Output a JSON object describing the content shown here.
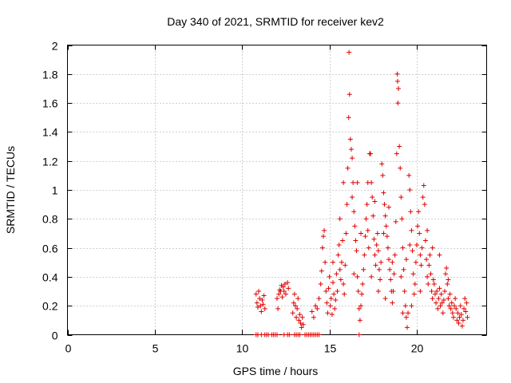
{
  "chart_data": {
    "type": "scatter",
    "title": "Day 340 of 2021, SRMTID for receiver kev2",
    "xlabel": "GPS time / hours",
    "ylabel": "SRMTID / TECUs",
    "xlim": [
      0,
      24
    ],
    "ylim": [
      0,
      2
    ],
    "xticks": [
      0,
      5,
      10,
      15,
      20
    ],
    "xtick_labels": [
      "0",
      "5",
      "10",
      "15",
      "20"
    ],
    "yticks": [
      0,
      0.2,
      0.4,
      0.6,
      0.8,
      1,
      1.2,
      1.4,
      1.6,
      1.8,
      2
    ],
    "ytick_labels": [
      "0",
      "0.2",
      "0.4",
      "0.6",
      "0.8",
      "1",
      "1.2",
      "1.4",
      "1.6",
      "1.8",
      "2"
    ],
    "grid": true,
    "marker": "+",
    "marker_color": "#e00000",
    "series": [
      {
        "name": "kev2",
        "points": [
          [
            10.8,
            0.0
          ],
          [
            10.9,
            0.0
          ],
          [
            11.1,
            0.0
          ],
          [
            11.3,
            0.0
          ],
          [
            11.4,
            0.0
          ],
          [
            11.5,
            0.0
          ],
          [
            11.7,
            0.0
          ],
          [
            11.8,
            0.0
          ],
          [
            11.9,
            0.0
          ],
          [
            12.0,
            0.0
          ],
          [
            12.4,
            0.0
          ],
          [
            12.6,
            0.0
          ],
          [
            12.7,
            0.0
          ],
          [
            13.0,
            0.0
          ],
          [
            13.1,
            0.0
          ],
          [
            13.2,
            0.0
          ],
          [
            13.3,
            0.0
          ],
          [
            13.6,
            0.0
          ],
          [
            13.7,
            0.0
          ],
          [
            13.8,
            0.0
          ],
          [
            13.9,
            0.0
          ],
          [
            14.0,
            0.0
          ],
          [
            14.1,
            0.0
          ],
          [
            14.2,
            0.0
          ],
          [
            14.3,
            0.0
          ],
          [
            14.4,
            0.0
          ],
          [
            16.7,
            0.0
          ],
          [
            10.8,
            0.28
          ],
          [
            10.85,
            0.22
          ],
          [
            10.9,
            0.19
          ],
          [
            10.95,
            0.3
          ],
          [
            11.0,
            0.25
          ],
          [
            11.05,
            0.2
          ],
          [
            11.1,
            0.16
          ],
          [
            11.15,
            0.24
          ],
          [
            11.2,
            0.21
          ],
          [
            11.25,
            0.27
          ],
          [
            11.3,
            0.18
          ],
          [
            12.0,
            0.25
          ],
          [
            12.05,
            0.18
          ],
          [
            12.1,
            0.28
          ],
          [
            12.15,
            0.31
          ],
          [
            12.2,
            0.3
          ],
          [
            12.25,
            0.34
          ],
          [
            12.3,
            0.26
          ],
          [
            12.35,
            0.33
          ],
          [
            12.4,
            0.3
          ],
          [
            12.45,
            0.35
          ],
          [
            12.5,
            0.28
          ],
          [
            12.6,
            0.36
          ],
          [
            12.65,
            0.32
          ],
          [
            12.9,
            0.15
          ],
          [
            12.95,
            0.22
          ],
          [
            13.0,
            0.28
          ],
          [
            13.05,
            0.2
          ],
          [
            13.1,
            0.12
          ],
          [
            13.15,
            0.18
          ],
          [
            13.2,
            0.25
          ],
          [
            13.25,
            0.1
          ],
          [
            13.3,
            0.14
          ],
          [
            13.35,
            0.08
          ],
          [
            13.4,
            0.05
          ],
          [
            13.45,
            0.12
          ],
          [
            13.5,
            0.07
          ],
          [
            14.0,
            0.16
          ],
          [
            14.1,
            0.12
          ],
          [
            14.2,
            0.2
          ],
          [
            14.3,
            0.18
          ],
          [
            14.4,
            0.25
          ],
          [
            14.5,
            0.35
          ],
          [
            14.55,
            0.44
          ],
          [
            14.6,
            0.6
          ],
          [
            14.65,
            0.68
          ],
          [
            14.7,
            0.72
          ],
          [
            14.75,
            0.5
          ],
          [
            14.8,
            0.3
          ],
          [
            14.85,
            0.22
          ],
          [
            14.9,
            0.15
          ],
          [
            14.95,
            0.32
          ],
          [
            15.0,
            0.4
          ],
          [
            15.05,
            0.2
          ],
          [
            15.1,
            0.25
          ],
          [
            15.15,
            0.14
          ],
          [
            15.2,
            0.36
          ],
          [
            15.25,
            0.28
          ],
          [
            15.3,
            0.18
          ],
          [
            15.35,
            0.24
          ],
          [
            15.4,
            0.42
          ],
          [
            15.45,
            0.3
          ],
          [
            15.5,
            0.55
          ],
          [
            15.55,
            0.62
          ],
          [
            15.6,
            0.45
          ],
          [
            15.65,
            0.38
          ],
          [
            15.7,
            0.5
          ],
          [
            15.75,
            0.65
          ],
          [
            15.8,
            0.35
          ],
          [
            15.85,
            0.28
          ],
          [
            15.9,
            0.48
          ],
          [
            15.95,
            0.7
          ],
          [
            16.0,
            0.9
          ],
          [
            16.05,
            1.15
          ],
          [
            16.1,
            1.5
          ],
          [
            16.12,
            1.95
          ],
          [
            16.15,
            1.66
          ],
          [
            16.2,
            1.35
          ],
          [
            16.25,
            1.28
          ],
          [
            16.3,
            1.22
          ],
          [
            16.35,
            1.05
          ],
          [
            16.4,
            0.85
          ],
          [
            16.45,
            0.75
          ],
          [
            16.5,
            0.65
          ],
          [
            16.55,
            0.58
          ],
          [
            16.6,
            0.4
          ],
          [
            16.65,
            0.3
          ],
          [
            16.7,
            0.18
          ],
          [
            16.75,
            0.1
          ],
          [
            16.8,
            0.2
          ],
          [
            16.85,
            0.28
          ],
          [
            16.9,
            0.35
          ],
          [
            16.95,
            0.45
          ],
          [
            17.0,
            0.55
          ],
          [
            17.05,
            0.68
          ],
          [
            17.1,
            0.8
          ],
          [
            17.15,
            0.9
          ],
          [
            17.2,
            0.72
          ],
          [
            17.25,
            0.6
          ],
          [
            17.3,
            1.25
          ],
          [
            17.35,
            1.25
          ],
          [
            17.4,
            1.05
          ],
          [
            17.45,
            0.95
          ],
          [
            17.5,
            0.82
          ],
          [
            17.55,
            0.66
          ],
          [
            17.6,
            0.55
          ],
          [
            17.65,
            0.48
          ],
          [
            17.7,
            0.62
          ],
          [
            17.75,
            0.7
          ],
          [
            17.8,
            0.58
          ],
          [
            17.85,
            0.45
          ],
          [
            17.9,
            0.38
          ],
          [
            17.95,
            0.5
          ],
          [
            18.0,
            1.18
          ],
          [
            18.05,
            1.1
          ],
          [
            18.1,
            0.98
          ],
          [
            18.15,
            0.9
          ],
          [
            18.2,
            0.82
          ],
          [
            18.25,
            0.75
          ],
          [
            18.3,
            0.68
          ],
          [
            18.35,
            0.6
          ],
          [
            18.4,
            0.52
          ],
          [
            18.45,
            0.45
          ],
          [
            18.5,
            0.38
          ],
          [
            18.55,
            0.3
          ],
          [
            18.6,
            0.22
          ],
          [
            18.65,
            0.3
          ],
          [
            18.7,
            0.42
          ],
          [
            18.75,
            0.55
          ],
          [
            18.8,
            0.78
          ],
          [
            18.85,
            1.25
          ],
          [
            18.88,
            1.8
          ],
          [
            18.9,
            1.75
          ],
          [
            18.92,
            1.6
          ],
          [
            18.95,
            1.7
          ],
          [
            19.0,
            1.3
          ],
          [
            19.05,
            1.15
          ],
          [
            19.1,
            0.95
          ],
          [
            19.15,
            0.8
          ],
          [
            19.2,
            0.6
          ],
          [
            19.25,
            0.45
          ],
          [
            19.3,
            0.3
          ],
          [
            19.35,
            0.2
          ],
          [
            19.4,
            0.12
          ],
          [
            19.45,
            0.05
          ],
          [
            19.5,
            0.15
          ],
          [
            19.55,
            1.1
          ],
          [
            19.6,
            1.0
          ],
          [
            19.65,
            0.85
          ],
          [
            19.7,
            0.72
          ],
          [
            19.75,
            0.58
          ],
          [
            19.8,
            0.42
          ],
          [
            19.85,
            0.28
          ],
          [
            19.9,
            0.35
          ],
          [
            19.95,
            0.5
          ],
          [
            20.0,
            0.62
          ],
          [
            20.05,
            0.75
          ],
          [
            20.1,
            0.85
          ],
          [
            20.15,
            0.7
          ],
          [
            20.2,
            0.55
          ],
          [
            20.25,
            0.48
          ],
          [
            20.3,
            0.6
          ],
          [
            20.35,
            0.95
          ],
          [
            20.4,
            1.03
          ],
          [
            20.45,
            0.9
          ],
          [
            20.5,
            0.65
          ],
          [
            20.55,
            0.52
          ],
          [
            20.6,
            0.4
          ],
          [
            20.65,
            0.35
          ],
          [
            20.7,
            0.48
          ],
          [
            20.75,
            0.55
          ],
          [
            20.8,
            0.42
          ],
          [
            20.85,
            0.3
          ],
          [
            20.9,
            0.25
          ],
          [
            20.95,
            0.38
          ],
          [
            21.0,
            0.35
          ],
          [
            21.05,
            0.28
          ],
          [
            21.1,
            0.22
          ],
          [
            21.15,
            0.3
          ],
          [
            21.2,
            0.18
          ],
          [
            21.25,
            0.25
          ],
          [
            21.3,
            0.32
          ],
          [
            21.35,
            0.2
          ],
          [
            21.4,
            0.28
          ],
          [
            21.45,
            0.22
          ],
          [
            21.5,
            0.15
          ],
          [
            21.55,
            0.24
          ],
          [
            21.6,
            0.3
          ],
          [
            21.65,
            0.42
          ],
          [
            21.7,
            0.46
          ],
          [
            21.75,
            0.35
          ],
          [
            21.8,
            0.25
          ],
          [
            21.85,
            0.2
          ],
          [
            21.9,
            0.28
          ],
          [
            21.95,
            0.18
          ],
          [
            22.0,
            0.22
          ],
          [
            22.05,
            0.15
          ],
          [
            22.1,
            0.12
          ],
          [
            22.15,
            0.2
          ],
          [
            22.2,
            0.25
          ],
          [
            22.25,
            0.18
          ],
          [
            22.3,
            0.1
          ],
          [
            22.35,
            0.15
          ],
          [
            22.4,
            0.08
          ],
          [
            22.45,
            0.12
          ],
          [
            22.5,
            0.2
          ],
          [
            22.55,
            0.14
          ],
          [
            22.6,
            0.06
          ],
          [
            22.65,
            0.1
          ],
          [
            22.7,
            0.18
          ],
          [
            22.75,
            0.25
          ],
          [
            22.8,
            0.16
          ],
          [
            22.85,
            0.22
          ],
          [
            22.9,
            0.12
          ],
          [
            15.6,
            0.8
          ],
          [
            15.8,
            1.05
          ],
          [
            16.3,
            0.95
          ],
          [
            16.8,
            0.7
          ],
          [
            17.2,
            1.05
          ],
          [
            17.6,
            0.92
          ],
          [
            18.1,
            0.7
          ],
          [
            18.4,
            0.88
          ],
          [
            18.6,
            0.5
          ],
          [
            19.1,
            0.4
          ],
          [
            19.4,
            0.52
          ],
          [
            19.7,
            0.2
          ],
          [
            20.2,
            0.3
          ],
          [
            20.6,
            0.72
          ],
          [
            21.3,
            0.55
          ],
          [
            21.8,
            0.38
          ],
          [
            16.4,
            0.42
          ],
          [
            17.8,
            0.3
          ],
          [
            18.2,
            0.25
          ],
          [
            19.2,
            0.15
          ],
          [
            20.9,
            0.6
          ],
          [
            15.2,
            0.5
          ],
          [
            16.6,
            1.05
          ],
          [
            17.4,
            0.4
          ],
          [
            19.6,
            0.62
          ]
        ]
      }
    ]
  }
}
